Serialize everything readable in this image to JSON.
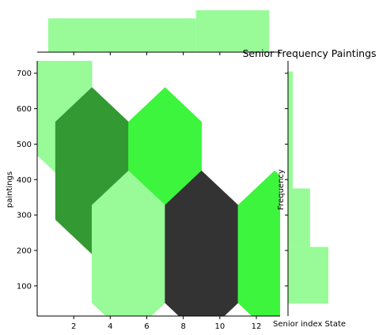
{
  "chart_data": {
    "type": "hexbin",
    "title": "Senior Frequency Paintings",
    "xlabel": "Senior index State",
    "ylabel": "paintings",
    "side_ylabel": "Frequency",
    "xlim": [
      0.0,
      13.3
    ],
    "ylim": [
      15,
      735
    ],
    "xticks": [
      2,
      4,
      6,
      8,
      10,
      12
    ],
    "yticks": [
      100,
      200,
      300,
      400,
      500,
      600,
      700
    ],
    "colors": {
      "light": "#98fb98",
      "medium": "#3df53d",
      "dark": "#339933",
      "darkest": "#333333"
    },
    "hexbins": [
      {
        "x": 1,
        "y": 655,
        "shade": "light"
      },
      {
        "x": 3,
        "y": 425,
        "shade": "dark"
      },
      {
        "x": 7,
        "y": 425,
        "shade": "medium"
      },
      {
        "x": 5,
        "y": 190,
        "shade": "light"
      },
      {
        "x": 9,
        "y": 190,
        "shade": "darkest"
      },
      {
        "x": 13,
        "y": 190,
        "shade": "medium"
      }
    ],
    "top_histogram": {
      "bins": [
        {
          "from": 0.6,
          "to": 8.7,
          "count": 1
        },
        {
          "from": 8.7,
          "to": 12.7,
          "count": 1.24
        }
      ],
      "max": 1.24
    },
    "right_histogram": {
      "bins": [
        {
          "from": 50,
          "to": 210,
          "count": 11
        },
        {
          "from": 210,
          "to": 375,
          "count": 6
        },
        {
          "from": 375,
          "to": 705,
          "count": 1.3
        }
      ],
      "max": 11
    }
  }
}
